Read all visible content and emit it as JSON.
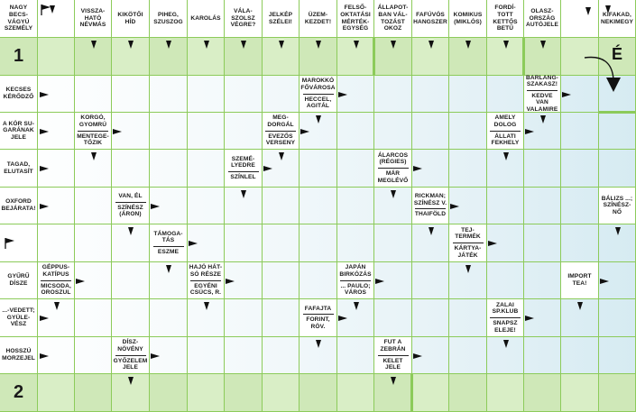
{
  "header": [
    "NAGY BECS-VÁGYÚ SZEMÉLY",
    "",
    "VISSZA-HATÓ NÉVMÁS",
    "KIKÖTŐI HÍD",
    "PIHEG, SZUSZOG",
    "KAROLÁS",
    "VÁLA-SZOLSZ VÉGRE?",
    "JELKÉP SZÉLEI!",
    "ÜZEM-KEZDET!",
    "FELSŐ-OKTATÁSI MÉRTÉK-EGYSÉG",
    "ÁLLAPOT-BAN VÁL-TOZÁST OKOZ",
    "FAFÚVÓS HANGSZER",
    "KOMIKUS (MIKLÓS)",
    "FORDÍ-TOTT KETTŐS BETŰ",
    "OLASZ-ORSZÁG AUTÓJELE",
    "",
    "KIFAKAD, NEKIMEGY"
  ],
  "row_numbers": {
    "first": "1",
    "second": "2"
  },
  "direction_letter": "É",
  "side_clues": [
    "KECSES KÉRŐDZŐ",
    "A KÓR SU-GARÁNAK JELE",
    "TAGAD, ELUTASÍT",
    "OXFORD BEJÁRATA!",
    "",
    "GYŰRŰ DÍSZE",
    "...-VEDETT; GYÜLE-VÉSZ",
    "HOSSZÚ MORZEJEL"
  ],
  "inner_clues": [
    {
      "lines": [
        "MAROKKÓ FŐVÁROSA",
        "HECCEL, AGITÁL"
      ]
    },
    {
      "lines": [
        "BARLANG-SZAKASZ!",
        "KEDVE VAN VALAMIRE"
      ]
    },
    {
      "lines": [
        "KORGÓ, GYOMRÚ",
        "MENTEGE-TŐZIK"
      ]
    },
    {
      "lines": [
        "MEG-DORGÁL",
        "EVEZŐS VERSENY"
      ]
    },
    {
      "lines": [
        "AMELY DOLOG",
        "ÁLLATI FEKHELY"
      ]
    },
    {
      "lines": [
        "SZEMÉ-LYEDRE",
        "SZÍNLEL"
      ]
    },
    {
      "lines": [
        "ÁLARCOS (RÉGIES)",
        "MÁR MEGLÉVŐ"
      ]
    },
    {
      "lines": [
        "VAN, ÉL",
        "SZÍNÉSZ (ÁRON)"
      ]
    },
    {
      "lines": [
        "RICKMAN; SZÍNÉSZ V.",
        "THAIFÖLD"
      ]
    },
    {
      "lines": [
        "BÁLIZS ...; SZÍNÉSZ-NŐ"
      ]
    },
    {
      "lines": [
        "TÁMOGA-TÁS",
        "ESZME"
      ]
    },
    {
      "lines": [
        "TEJ-TERMÉK",
        "KÁRTYA-JÁTÉK"
      ]
    },
    {
      "lines": [
        "GÉPPUS-KATÍPUS",
        "MICSODA, OROSZUL"
      ]
    },
    {
      "lines": [
        "HAJÓ HÁT-SÓ RÉSZE",
        "EGYÉNI CSÚCS, R."
      ]
    },
    {
      "lines": [
        "JAPÁN BIRKÓZÁS",
        "... PAULO; VÁROS"
      ]
    },
    {
      "lines": [
        "IMPORT TEA!"
      ]
    },
    {
      "lines": [
        "FAFAJTA",
        "FORINT, RÖV."
      ]
    },
    {
      "lines": [
        "ZALAI SP.KLUB",
        "SNAPSZ ELEJE!"
      ]
    },
    {
      "lines": [
        "DÍSZ-NÖVÉNY",
        "GYŐZELEM JELE"
      ]
    },
    {
      "lines": [
        "FUT A ZEBRÁN",
        "KELET JELE"
      ]
    }
  ]
}
